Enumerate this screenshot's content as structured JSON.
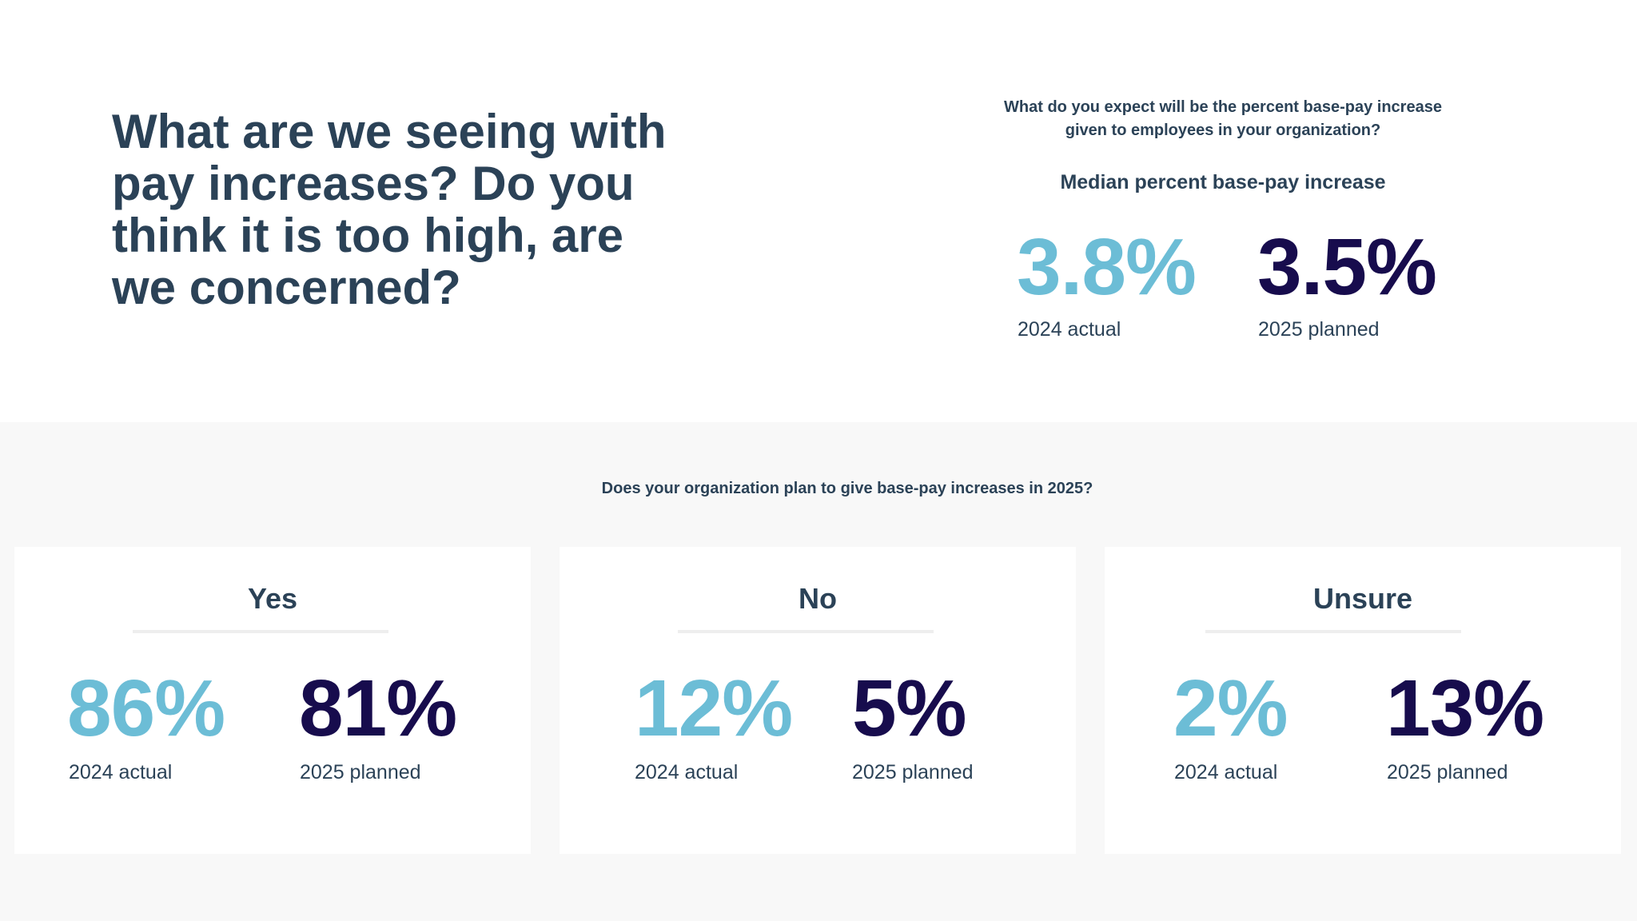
{
  "headline": "What are we seeing with pay increases? Do you think it is too high, are we concerned?",
  "median_section": {
    "question": "What do you expect will be the percent base-pay increase given to employees in your organization?",
    "label": "Median percent base-pay increase",
    "stats": [
      {
        "value": "3.8%",
        "caption": "2024 actual"
      },
      {
        "value": "3.5%",
        "caption": "2025 planned"
      }
    ]
  },
  "plan_section": {
    "question": "Does your organization plan to give base-pay increases in 2025?",
    "cards": [
      {
        "title": "Yes",
        "actual": "86%",
        "actual_caption": "2024 actual",
        "planned": "81%",
        "planned_caption": "2025 planned"
      },
      {
        "title": "No",
        "actual": "12%",
        "actual_caption": "2024 actual",
        "planned": "5%",
        "planned_caption": "2025 planned"
      },
      {
        "title": "Unsure",
        "actual": "2%",
        "actual_caption": "2024 actual",
        "planned": "13%",
        "planned_caption": "2025 planned"
      }
    ]
  },
  "colors": {
    "actual": "#6cbdd6",
    "planned": "#170c4d",
    "text": "#2b4257",
    "panel_background": "#f8f8f8"
  }
}
